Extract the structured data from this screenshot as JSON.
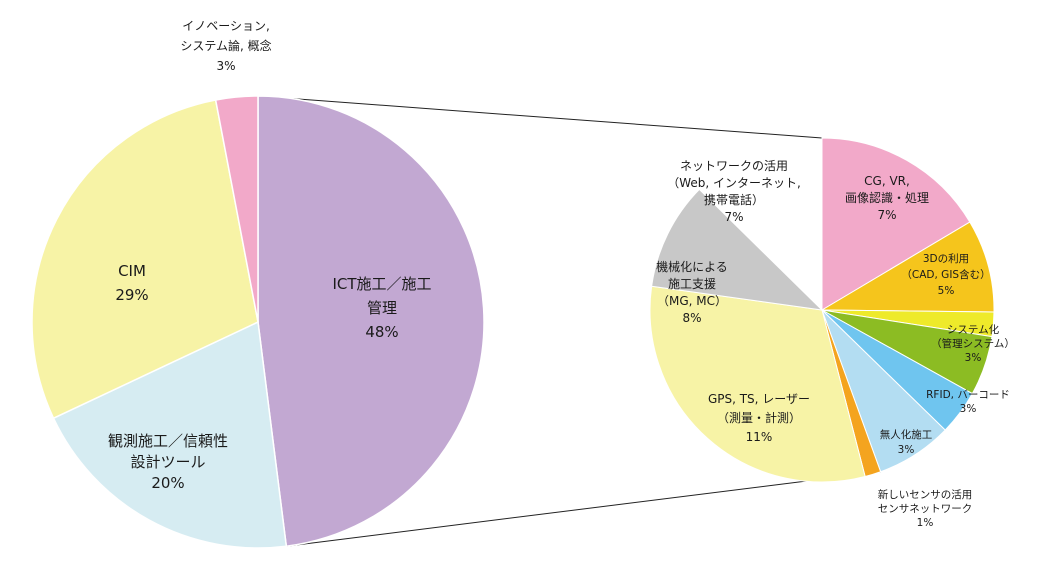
{
  "chart_data": [
    {
      "type": "pie",
      "categories": [
        "ICT施工／施工管理",
        "観測施工／信頼性設計ツール",
        "CIM",
        "イノベーション, システム論, 概念"
      ],
      "values": [
        48,
        20,
        29,
        3
      ],
      "labels": [
        [
          "ICT施工／施工",
          "管理",
          "48%"
        ],
        [
          "観測施工／信頼性",
          "設計ツール",
          "20%"
        ],
        [
          "CIM",
          "29%"
        ],
        [
          "イノベーション,",
          "システム論, 概念",
          "3%"
        ]
      ],
      "colors": [
        "#c2a8d2",
        "#d6ecf2",
        "#f7f3a6",
        "#f2a9c9"
      ]
    },
    {
      "type": "pie",
      "categories": [
        "CG, VR, 画像認識・処理",
        "3Dの利用（CAD, GIS含む）",
        "システム化（管理システム）",
        "RFID, バーコード",
        "無人化施工",
        "新しいセンサの活用 センサネットワーク",
        "GPS, TS, レーザー（測量・計測）",
        "機械化による施工支援（MG, MC）",
        "ネットワークの活用（Web, インターネット, 携帯電話）"
      ],
      "values": [
        7,
        5,
        3,
        3,
        3,
        1,
        11,
        8,
        7
      ],
      "labels": [
        [
          "CG, VR,",
          "画像認識・処理",
          "7%"
        ],
        [
          "3Dの利用",
          "（CAD, GIS含む）",
          "5%"
        ],
        [
          "システム化",
          "（管理システム）",
          "3%"
        ],
        [
          "RFID, バーコード",
          "3%"
        ],
        [
          "無人化施工",
          "3%"
        ],
        [
          "新しいセンサの活用",
          "センサネットワーク",
          "1%"
        ],
        [
          "GPS, TS, レーザー",
          "（測量・計測）",
          "11%"
        ],
        [
          "機械化による",
          "施工支援",
          "（MG, MC）",
          "8%"
        ],
        [
          "ネットワークの活用",
          "（Web, インターネット,",
          "携帯電話）",
          "7%"
        ]
      ],
      "colors": [
        "#f2a9c9",
        "#f5c51c",
        "#eeea2a",
        "#8cbc23",
        "#6fc5ef",
        "#b3ddf2",
        "#f4a41f",
        "#f7f3a6",
        "#c8c8c8"
      ]
    }
  ]
}
